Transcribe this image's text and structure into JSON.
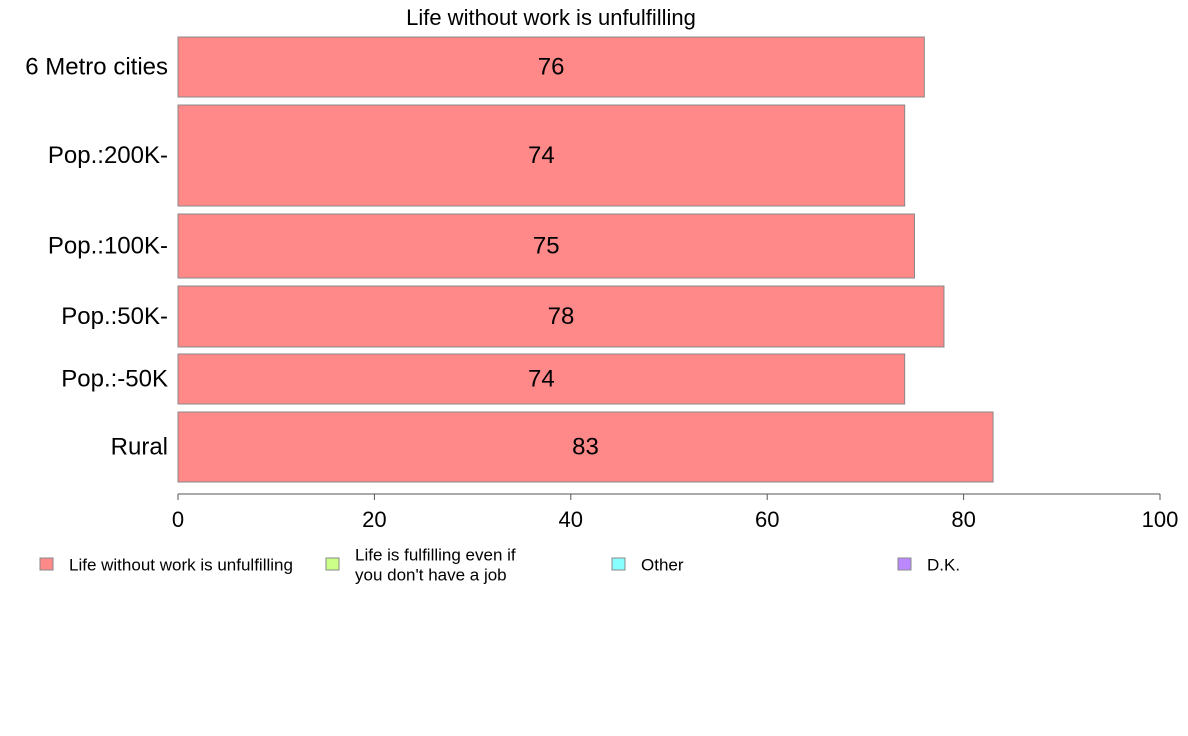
{
  "chart_data": {
    "type": "bar",
    "orientation": "horizontal",
    "title": "Life without work is unfulfilling",
    "categories": [
      "6 Metro cities",
      "Pop.:200K-",
      "Pop.:100K-",
      "Pop.:50K-",
      "Pop.:-50K",
      "Rural"
    ],
    "series": [
      {
        "name": "Life without work is unfulfilling",
        "values": [
          76,
          74,
          75,
          78,
          74,
          83
        ],
        "value_labels": [
          "76",
          "74",
          "75",
          "78",
          "74",
          "83"
        ],
        "color": "#ff8888"
      }
    ],
    "xlim": [
      0,
      100
    ],
    "xticks": [
      0,
      20,
      40,
      60,
      80,
      100
    ],
    "xtick_labels": [
      "0",
      "20",
      "40",
      "60",
      "80",
      "100"
    ],
    "grid": false,
    "legend_position": "bottom",
    "legend": [
      {
        "label_lines": [
          "Life without work is unfulfilling"
        ],
        "color": "#ff8888"
      },
      {
        "label_lines": [
          "Life is fulfilling even if",
          "you don't have a job"
        ],
        "color": "#ccff88"
      },
      {
        "label_lines": [
          "Other"
        ],
        "color": "#88ffff"
      },
      {
        "label_lines": [
          "D.K."
        ],
        "color": "#bb88ff"
      }
    ]
  }
}
